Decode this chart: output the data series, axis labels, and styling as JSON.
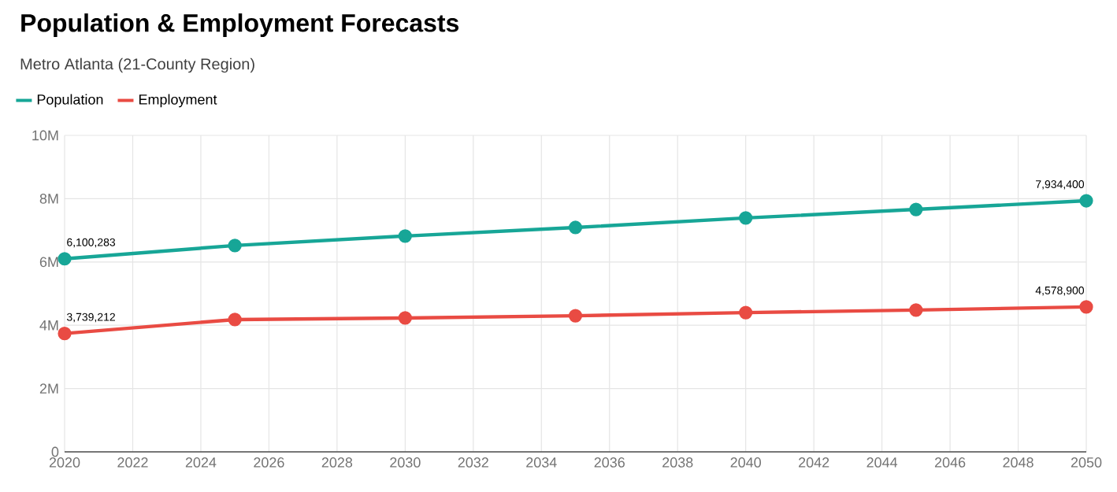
{
  "chart_data": {
    "type": "line",
    "title": "Population & Employment Forecasts",
    "subtitle": "Metro Atlanta (21-County Region)",
    "x": [
      2020,
      2025,
      2030,
      2035,
      2040,
      2045,
      2050
    ],
    "series": [
      {
        "name": "Population",
        "color": "#17a697",
        "values": [
          6100283,
          6520000,
          6820000,
          7090000,
          7390000,
          7660000,
          7934400
        ],
        "value_labels": [
          "6,100,283",
          null,
          null,
          null,
          null,
          null,
          "7,934,400"
        ]
      },
      {
        "name": "Employment",
        "color": "#e94b43",
        "values": [
          3739212,
          4180000,
          4230000,
          4300000,
          4400000,
          4480000,
          4578900
        ],
        "value_labels": [
          "3,739,212",
          null,
          null,
          null,
          null,
          null,
          "4,578,900"
        ]
      }
    ],
    "xlim": [
      2020,
      2050
    ],
    "xticks": [
      2020,
      2022,
      2024,
      2026,
      2028,
      2030,
      2032,
      2034,
      2036,
      2038,
      2040,
      2042,
      2044,
      2046,
      2048,
      2050
    ],
    "ylim": [
      0,
      10000000
    ],
    "yticks": [
      {
        "value": 0,
        "label": "0"
      },
      {
        "value": 2000000,
        "label": "2M"
      },
      {
        "value": 4000000,
        "label": "4M"
      },
      {
        "value": 6000000,
        "label": "6M"
      },
      {
        "value": 8000000,
        "label": "8M"
      },
      {
        "value": 10000000,
        "label": "10M"
      }
    ],
    "grid": true,
    "legend": "top left",
    "marker": "circle",
    "line_style": "solid"
  }
}
